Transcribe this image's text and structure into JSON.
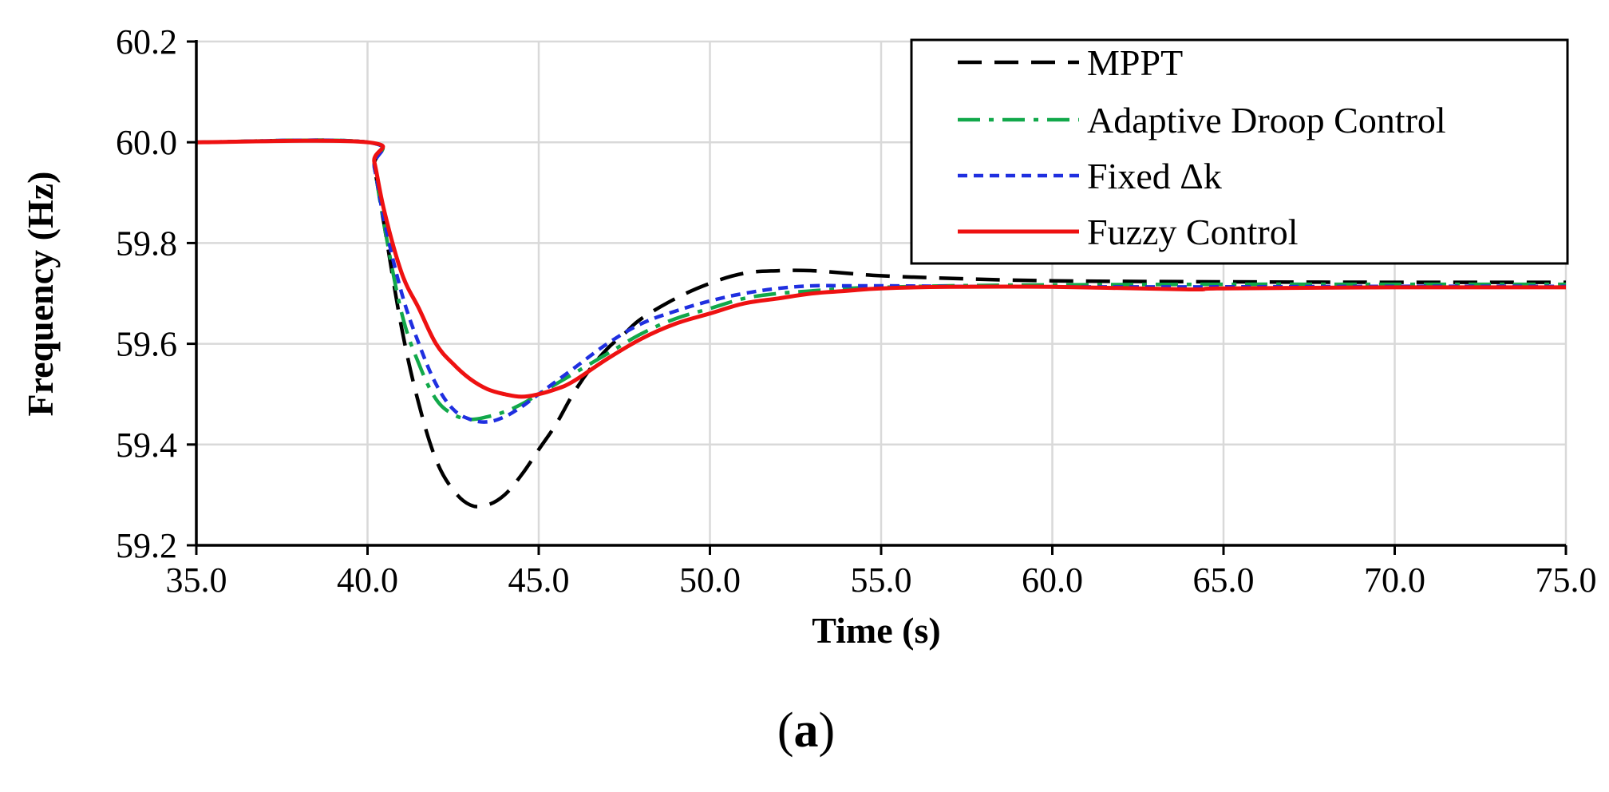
{
  "chart_data": {
    "type": "line",
    "title": "",
    "xlabel": "Time (s)",
    "ylabel": "Frequency (Hz)",
    "xlim": [
      35.0,
      75.0
    ],
    "ylim": [
      59.2,
      60.2
    ],
    "xticks": [
      35.0,
      40.0,
      45.0,
      50.0,
      55.0,
      60.0,
      65.0,
      70.0,
      75.0
    ],
    "yticks": [
      59.2,
      59.4,
      59.6,
      59.8,
      60.0,
      60.2
    ],
    "xtick_labels": [
      "35.0",
      "40.0",
      "45.0",
      "50.0",
      "55.0",
      "60.0",
      "65.0",
      "70.0",
      "75.0"
    ],
    "ytick_labels": [
      "59.2",
      "59.4",
      "59.6",
      "59.8",
      "60.0",
      "60.2"
    ],
    "grid": true,
    "legend_position": "top-right",
    "panel_label": {
      "open": "(",
      "letter": "a",
      "close": ")"
    },
    "series": [
      {
        "name": "MPPT",
        "color": "#000000",
        "style": "dashed",
        "x": [
          35.0,
          40.0,
          40.2,
          40.5,
          41.0,
          41.5,
          42.0,
          42.5,
          43.0,
          43.5,
          44.0,
          44.5,
          45.0,
          45.5,
          46.0,
          46.5,
          47.0,
          47.5,
          48.0,
          49.0,
          50.0,
          51.0,
          52.0,
          53.0,
          54.0,
          55.0,
          57.0,
          60.0,
          65.0,
          70.0,
          75.0
        ],
        "y": [
          60.0,
          60.0,
          59.95,
          59.83,
          59.63,
          59.48,
          59.37,
          59.31,
          59.28,
          59.28,
          59.3,
          59.34,
          59.39,
          59.44,
          59.5,
          59.55,
          59.59,
          59.62,
          59.65,
          59.69,
          59.72,
          59.74,
          59.745,
          59.745,
          59.74,
          59.735,
          59.73,
          59.725,
          59.723,
          59.722,
          59.722
        ]
      },
      {
        "name": "Adaptive Droop Control",
        "color": "#11a84a",
        "style": "dashdot",
        "x": [
          35.0,
          40.0,
          40.2,
          40.5,
          41.0,
          41.5,
          42.0,
          42.5,
          43.0,
          43.5,
          44.0,
          44.5,
          45.0,
          46.0,
          47.0,
          48.0,
          49.0,
          50.0,
          51.0,
          52.0,
          53.0,
          54.0,
          55.0,
          57.0,
          60.0,
          65.0,
          70.0,
          75.0
        ],
        "y": [
          60.0,
          60.0,
          59.95,
          59.83,
          59.66,
          59.56,
          59.49,
          59.46,
          59.45,
          59.455,
          59.465,
          59.48,
          59.5,
          59.54,
          59.58,
          59.62,
          59.65,
          59.67,
          59.69,
          59.7,
          59.705,
          59.71,
          59.712,
          59.715,
          59.717,
          59.718,
          59.718,
          59.718
        ]
      },
      {
        "name": "Fixed Δk",
        "color": "#1f2fe0",
        "style": "dotted",
        "x": [
          35.0,
          40.0,
          40.2,
          40.5,
          41.0,
          41.5,
          42.0,
          42.5,
          43.0,
          43.5,
          44.0,
          44.5,
          45.0,
          46.0,
          47.0,
          48.0,
          49.0,
          50.0,
          51.0,
          52.0,
          53.0,
          54.0,
          55.0,
          57.0,
          60.0,
          65.0,
          70.0,
          75.0
        ],
        "y": [
          60.0,
          60.0,
          59.95,
          59.84,
          59.7,
          59.6,
          59.52,
          59.47,
          59.45,
          59.445,
          59.455,
          59.475,
          59.5,
          59.55,
          59.6,
          59.64,
          59.665,
          59.685,
          59.7,
          59.71,
          59.715,
          59.715,
          59.715,
          59.714,
          59.713,
          59.713,
          59.714,
          59.714
        ]
      },
      {
        "name": "Fuzzy Control",
        "color": "#ee1111",
        "style": "solid",
        "x": [
          35.0,
          40.0,
          40.2,
          40.5,
          41.0,
          41.5,
          42.0,
          42.5,
          43.0,
          43.5,
          44.0,
          44.5,
          45.0,
          45.5,
          46.0,
          47.0,
          48.0,
          49.0,
          50.0,
          51.0,
          52.0,
          53.0,
          54.0,
          55.0,
          57.0,
          60.0,
          64.0,
          65.0,
          70.0,
          75.0
        ],
        "y": [
          60.0,
          60.0,
          59.96,
          59.86,
          59.74,
          59.67,
          59.6,
          59.56,
          59.53,
          59.51,
          59.5,
          59.495,
          59.5,
          59.51,
          59.525,
          59.57,
          59.61,
          59.64,
          59.66,
          59.68,
          59.69,
          59.7,
          59.705,
          59.71,
          59.713,
          59.713,
          59.708,
          59.71,
          59.712,
          59.712
        ]
      }
    ]
  }
}
